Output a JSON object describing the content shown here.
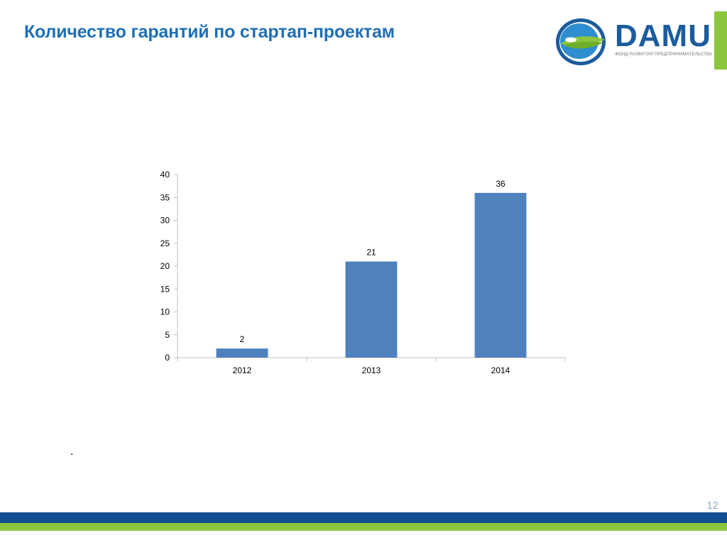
{
  "slide": {
    "title": "Количество гарантий по стартап-проектам",
    "note": ".",
    "page_number": "12"
  },
  "logo": {
    "wordmark": "DAMU",
    "tagline": "ФОНД РАЗВИТИЯ ПРЕДПРИНИМАТЕЛЬСТВА",
    "colors": {
      "blue": "#1b5c9e",
      "green": "#8cc63f"
    }
  },
  "colors": {
    "title": "#1f6fb5",
    "bar": "#4f81bd",
    "band_blue": "#124e93",
    "band_green": "#8cc63f"
  },
  "chart_data": {
    "type": "bar",
    "title": "",
    "xlabel": "",
    "ylabel": "",
    "categories": [
      "2012",
      "2013",
      "2014"
    ],
    "values": [
      2,
      21,
      36
    ],
    "data_labels": [
      "2",
      "21",
      "36"
    ],
    "ylim": [
      0,
      40
    ],
    "yticks": [
      "0",
      "5",
      "10",
      "15",
      "20",
      "25",
      "30",
      "35",
      "40"
    ],
    "grid": false,
    "legend": "none",
    "bar_color": "#4f81bd"
  }
}
